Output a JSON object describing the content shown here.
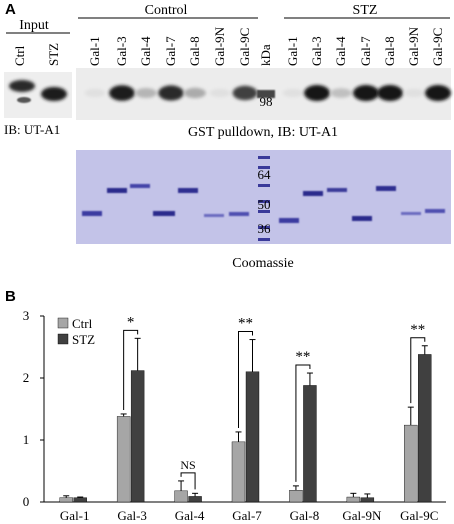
{
  "panel_a": {
    "label": "A",
    "input_header": "Input",
    "input_lanes": [
      "Ctrl",
      "STZ"
    ],
    "control_header": "Control",
    "stz_header": "STZ",
    "lanes": [
      "Gal-1",
      "Gal-3",
      "Gal-4",
      "Gal-7",
      "Gal-8",
      "Gal-9N",
      "Gal-9C"
    ],
    "kda_label": "kDa",
    "blot_marker": "98",
    "ib_label": "IB: UT-A1",
    "pulldown_caption": "GST pulldown, IB: UT-A1",
    "coomassie_markers": [
      "64",
      "50",
      "36"
    ],
    "coomassie_caption": "Coomassie",
    "pulldown_signal": {
      "control": [
        0.05,
        0.95,
        0.25,
        0.9,
        0.3,
        0.05,
        0.8
      ],
      "stz": [
        0.05,
        1.0,
        0.2,
        1.0,
        1.0,
        0.05,
        1.0
      ]
    }
  },
  "panel_b": {
    "label": "B",
    "chart_data": {
      "type": "bar",
      "categories": [
        "Gal-1",
        "Gal-3",
        "Gal-4",
        "Gal-7",
        "Gal-8",
        "Gal-9N",
        "Gal-9C"
      ],
      "series": [
        {
          "name": "Ctrl",
          "color": "#a6a6a6",
          "values": [
            0.07,
            1.38,
            0.18,
            0.97,
            0.19,
            0.08,
            1.24
          ],
          "errors": [
            0.03,
            0.04,
            0.16,
            0.16,
            0.07,
            0.06,
            0.29
          ]
        },
        {
          "name": "STZ",
          "color": "#404040",
          "values": [
            0.07,
            2.12,
            0.09,
            2.1,
            1.88,
            0.07,
            2.38
          ],
          "errors": [
            0.01,
            0.52,
            0.05,
            0.52,
            0.2,
            0.06,
            0.14
          ]
        }
      ],
      "ylim": [
        0,
        3
      ],
      "yticks": [
        "0",
        "1",
        "2",
        "3"
      ],
      "significance": [
        "",
        "*",
        "NS",
        "**",
        "**",
        "",
        "**"
      ],
      "legend_position": "top-left"
    }
  }
}
